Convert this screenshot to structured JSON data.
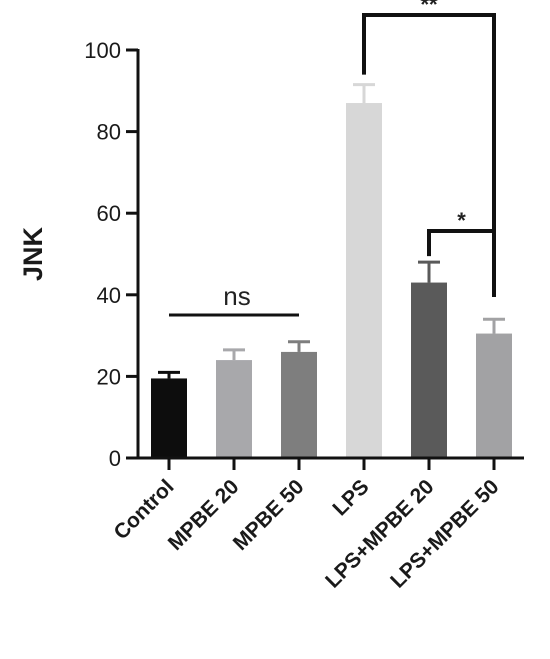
{
  "chart_data": {
    "type": "bar",
    "title": "",
    "xlabel": "",
    "ylabel": "JNK",
    "ylim": [
      0,
      100
    ],
    "yticks": [
      0,
      20,
      40,
      60,
      80,
      100
    ],
    "grid": false,
    "categories": [
      "Control",
      "MPBE 20",
      "MPBE 50",
      "LPS",
      "LPS+MPBE 20",
      "LPS+MPBE 50"
    ],
    "values": [
      19.5,
      24,
      26,
      87,
      43,
      30.5
    ],
    "errors": [
      1.5,
      2.5,
      2.5,
      4.5,
      5,
      3.5
    ],
    "bar_colors": [
      "#0d0d0d",
      "#a8a8ab",
      "#7e7e7e",
      "#d7d7d7",
      "#5a5a5a",
      "#a2a2a4"
    ],
    "annotations": [
      {
        "text": "ns",
        "from": "Control",
        "to": "MPBE 50",
        "type": "line"
      },
      {
        "text": "*",
        "from": "LPS+MPBE 20",
        "to": "LPS+MPBE 50",
        "type": "bracket"
      },
      {
        "text": "**",
        "from": "LPS",
        "to": "LPS+MPBE 50",
        "type": "bracket"
      }
    ]
  }
}
